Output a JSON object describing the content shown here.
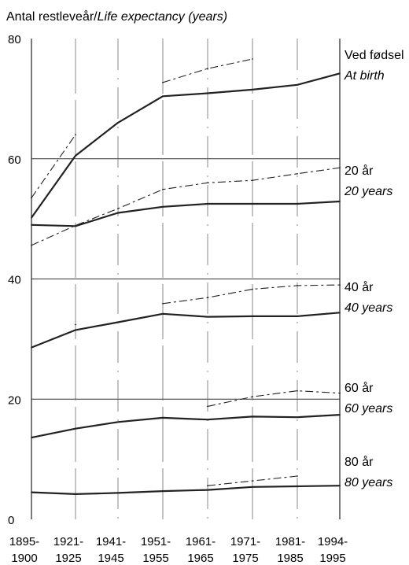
{
  "chart_data": {
    "type": "line",
    "ylabel": {
      "no": "Antal restleveår/",
      "en": "Life expectancy (years)"
    },
    "categories": [
      "1895-1900",
      "1921-1925",
      "1941-1945",
      "1951-1955",
      "1961-1965",
      "1971-1975",
      "1981-1985",
      "1994-1995"
    ],
    "category_labels": [
      [
        "1895-",
        "1900"
      ],
      [
        "1921-",
        "1925"
      ],
      [
        "1941-",
        "1945"
      ],
      [
        "1951-",
        "1955"
      ],
      [
        "1961-",
        "1965"
      ],
      [
        "1971-",
        "1975"
      ],
      [
        "1981-",
        "1985"
      ],
      [
        "1994-",
        "1995"
      ]
    ],
    "ylim": [
      0,
      80
    ],
    "yticks": [
      "0",
      "20",
      "40",
      "60",
      "80"
    ],
    "grid": true,
    "series_label_placement": "right",
    "series": [
      {
        "id": "birth_m",
        "name": "Ved fødsel",
        "name_en": "At birth",
        "style": "solid",
        "values": [
          50.2,
          60.5,
          66.0,
          70.4,
          70.9,
          71.5,
          72.3,
          74.2
        ]
      },
      {
        "id": "birth_f",
        "style": "dashed",
        "values": [
          53.5,
          64.0,
          null,
          72.7,
          75.0,
          76.6,
          null,
          null
        ]
      },
      {
        "id": "age20_m",
        "name": "20 år",
        "name_en": "20 years",
        "style": "solid",
        "values": [
          49.0,
          48.8,
          51.0,
          52.0,
          52.5,
          52.5,
          52.5,
          52.9
        ]
      },
      {
        "id": "age20_f",
        "style": "dashed",
        "values": [
          45.6,
          48.9,
          51.7,
          54.9,
          56.0,
          56.4,
          57.5,
          58.5
        ]
      },
      {
        "id": "age40_m",
        "name": "40 år",
        "name_en": "40 years",
        "style": "solid",
        "values": [
          28.6,
          31.5,
          32.8,
          34.2,
          33.7,
          33.8,
          33.8,
          34.4
        ]
      },
      {
        "id": "age40_f",
        "style": "dashed",
        "values": [
          null,
          32.4,
          null,
          35.9,
          36.9,
          38.3,
          38.9,
          39.0
        ]
      },
      {
        "id": "age60_m",
        "name": "60 år",
        "name_en": "60 years",
        "style": "solid",
        "values": [
          13.6,
          15.1,
          16.2,
          16.9,
          16.6,
          17.1,
          17.0,
          17.4
        ]
      },
      {
        "id": "age60_f",
        "style": "dashed",
        "values": [
          null,
          null,
          null,
          null,
          18.8,
          20.4,
          21.4,
          21.0
        ]
      },
      {
        "id": "age80_m",
        "name": "80 år",
        "name_en": "80 years",
        "style": "solid",
        "values": [
          4.5,
          4.2,
          4.4,
          4.7,
          4.9,
          5.4,
          5.5,
          5.6
        ]
      },
      {
        "id": "age80_f",
        "style": "dashed",
        "values": [
          null,
          null,
          null,
          null,
          5.6,
          6.4,
          7.2,
          null
        ]
      }
    ]
  }
}
